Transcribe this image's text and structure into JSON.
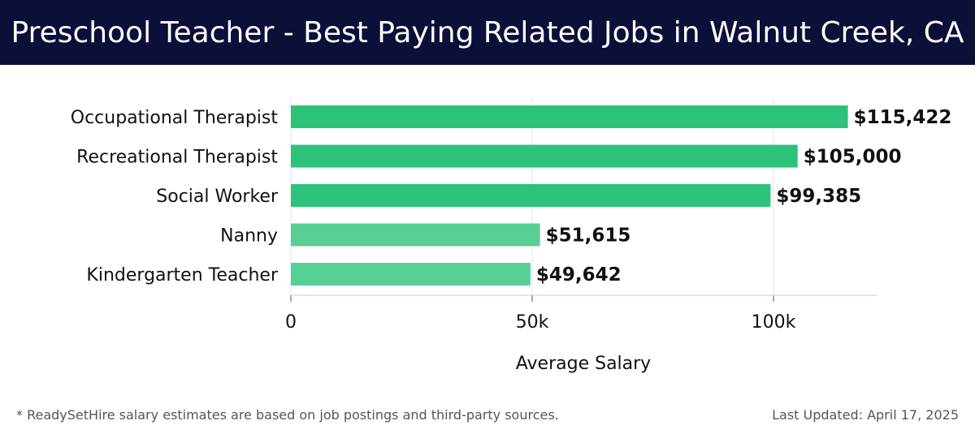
{
  "header": {
    "title": "Preschool Teacher - Best Paying Related Jobs in Walnut Creek, CA"
  },
  "chart_data": {
    "type": "bar",
    "orientation": "horizontal",
    "categories": [
      "Occupational Therapist",
      "Recreational Therapist",
      "Social Worker",
      "Nanny",
      "Kindergarten Teacher"
    ],
    "values": [
      115422,
      105000,
      99385,
      51615,
      49642
    ],
    "value_labels": [
      "$115,422",
      "$105,000",
      "$99,385",
      "$51,615",
      "$49,642"
    ],
    "xlabel": "Average Salary",
    "ylabel": "",
    "xlim": [
      0,
      121500
    ],
    "xticks": [
      0,
      50000,
      100000
    ],
    "xtick_labels": [
      "0",
      "50k",
      "100k"
    ],
    "grid": true,
    "colors": [
      "#2cc27a",
      "#2cc27a",
      "#2cc27a",
      "#57cf95",
      "#57cf95"
    ]
  },
  "footer": {
    "note": "* ReadySetHire salary estimates are based on job postings and third-party sources.",
    "updated": "Last Updated: April 17, 2025"
  }
}
